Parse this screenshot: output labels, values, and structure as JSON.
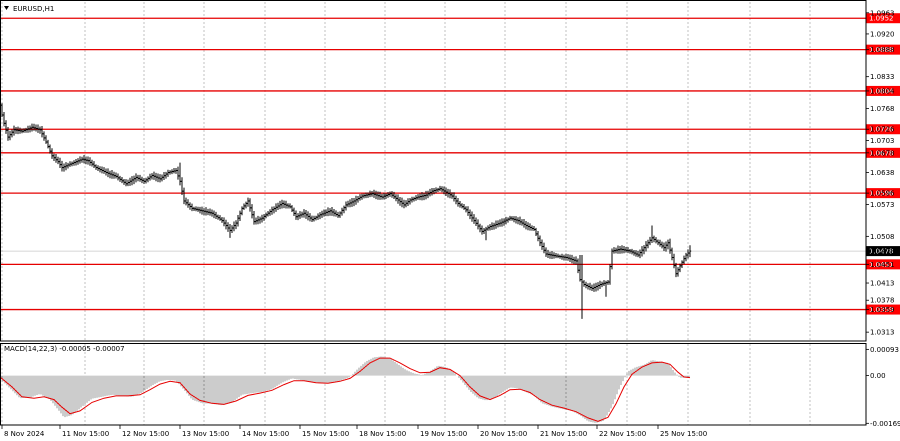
{
  "chart_data": [
    {
      "type": "candlestick",
      "title": "EURUSD,H1",
      "ylim": [
        1.0295,
        1.0985
      ],
      "y_ticks": [
        "1.0963",
        "1.0920",
        "1.0888",
        "1.0833",
        "1.0804",
        "1.0768",
        "1.0726",
        "1.0703",
        "1.0678",
        "1.0638",
        "1.0596",
        "1.0573",
        "1.0508",
        "1.0478",
        "1.0451",
        "1.0413",
        "1.0378",
        "1.0359",
        "1.0313"
      ],
      "current_price": {
        "value": 1.0478,
        "label": "1.0478"
      },
      "levels": [
        {
          "value": 1.0952,
          "label": "1.0952"
        },
        {
          "value": 1.0888,
          "label": "1.0888"
        },
        {
          "value": 1.0804,
          "label": "1.0804"
        },
        {
          "value": 1.0726,
          "label": "1.0726"
        },
        {
          "value": 1.0678,
          "label": "1.0678"
        },
        {
          "value": 1.0596,
          "label": "1.0596"
        },
        {
          "value": 1.0451,
          "label": "1.0451"
        },
        {
          "value": 1.0359,
          "label": "1.0359"
        }
      ],
      "x_labels": [
        "8 Nov 2024",
        "11 Nov 15:00",
        "12 Nov 15:00",
        "13 Nov 15:00",
        "14 Nov 15:00",
        "15 Nov 15:00",
        "18 Nov 15:00",
        "19 Nov 15:00",
        "20 Nov 15:00",
        "21 Nov 15:00",
        "22 Nov 15:00",
        "25 Nov 15:00"
      ],
      "price_path": [
        [
          0,
          1.0775
        ],
        [
          3,
          1.0745
        ],
        [
          8,
          1.071
        ],
        [
          14,
          1.0725
        ],
        [
          22,
          1.0722
        ],
        [
          32,
          1.073
        ],
        [
          40,
          1.0725
        ],
        [
          46,
          1.07
        ],
        [
          52,
          1.0672
        ],
        [
          58,
          1.066
        ],
        [
          62,
          1.0648
        ],
        [
          70,
          1.0655
        ],
        [
          82,
          1.0665
        ],
        [
          88,
          1.0662
        ],
        [
          96,
          1.0648
        ],
        [
          106,
          1.0638
        ],
        [
          116,
          1.063
        ],
        [
          126,
          1.0615
        ],
        [
          136,
          1.0628
        ],
        [
          144,
          1.062
        ],
        [
          152,
          1.0632
        ],
        [
          160,
          1.0625
        ],
        [
          168,
          1.0638
        ],
        [
          176,
          1.0642
        ],
        [
          180,
          1.062
        ],
        [
          184,
          1.058
        ],
        [
          192,
          1.0565
        ],
        [
          202,
          1.056
        ],
        [
          212,
          1.0555
        ],
        [
          222,
          1.054
        ],
        [
          230,
          1.052
        ],
        [
          236,
          1.0535
        ],
        [
          242,
          1.0565
        ],
        [
          248,
          1.058
        ],
        [
          254,
          1.0538
        ],
        [
          262,
          1.0545
        ],
        [
          272,
          1.0562
        ],
        [
          282,
          1.0575
        ],
        [
          290,
          1.0568
        ],
        [
          296,
          1.0548
        ],
        [
          304,
          1.0555
        ],
        [
          312,
          1.0542
        ],
        [
          320,
          1.0552
        ],
        [
          330,
          1.056
        ],
        [
          338,
          1.055
        ],
        [
          346,
          1.0572
        ],
        [
          354,
          1.058
        ],
        [
          362,
          1.059
        ],
        [
          372,
          1.0595
        ],
        [
          382,
          1.0588
        ],
        [
          390,
          1.0595
        ],
        [
          398,
          1.0582
        ],
        [
          404,
          1.0572
        ],
        [
          410,
          1.0582
        ],
        [
          418,
          1.0588
        ],
        [
          426,
          1.0592
        ],
        [
          432,
          1.06
        ],
        [
          440,
          1.0605
        ],
        [
          446,
          1.0598
        ],
        [
          452,
          1.059
        ],
        [
          458,
          1.0575
        ],
        [
          466,
          1.0562
        ],
        [
          474,
          1.054
        ],
        [
          482,
          1.0518
        ],
        [
          490,
          1.0528
        ],
        [
          500,
          1.0535
        ],
        [
          510,
          1.0545
        ],
        [
          518,
          1.054
        ],
        [
          526,
          1.053
        ],
        [
          534,
          1.0522
        ],
        [
          540,
          1.0495
        ],
        [
          546,
          1.0472
        ],
        [
          556,
          1.0468
        ],
        [
          566,
          1.0465
        ],
        [
          576,
          1.0458
        ],
        [
          580,
          1.042
        ],
        [
          584,
          1.041
        ],
        [
          592,
          1.0402
        ],
        [
          600,
          1.041
        ],
        [
          608,
          1.0415
        ],
        [
          612,
          1.0478
        ],
        [
          620,
          1.0482
        ],
        [
          630,
          1.0478
        ],
        [
          638,
          1.047
        ],
        [
          646,
          1.049
        ],
        [
          652,
          1.0505
        ],
        [
          658,
          1.0495
        ],
        [
          664,
          1.0485
        ],
        [
          668,
          1.0495
        ],
        [
          672,
          1.0465
        ],
        [
          676,
          1.0432
        ],
        [
          680,
          1.0448
        ],
        [
          686,
          1.047
        ],
        [
          690,
          1.0478
        ]
      ],
      "wicks": [
        [
          180,
          1.0658
        ],
        [
          230,
          1.0505
        ],
        [
          486,
          1.05
        ],
        [
          581,
          1.047
        ],
        [
          582,
          1.034
        ],
        [
          606,
          1.0385
        ],
        [
          652,
          1.053
        ],
        [
          676,
          1.0425
        ],
        [
          690,
          1.049
        ]
      ],
      "colors": {
        "level": "#e60000",
        "label_bg": "#ff0000",
        "label_text": "#ffffff",
        "grid": "#999999",
        "candle": "#000000",
        "current_bg": "#000000"
      }
    },
    {
      "type": "bar",
      "title": "MACD(14,22,3) -0.00005 -0.00007",
      "ylim": [
        -0.00175,
        0.00112
      ],
      "y_ticks": [
        "0.00093",
        "0.00",
        "-0.00169"
      ],
      "histogram": [
        [
          0,
          -0.0001
        ],
        [
          10,
          -0.00045
        ],
        [
          20,
          -0.0008
        ],
        [
          30,
          -0.00078
        ],
        [
          40,
          -0.00065
        ],
        [
          50,
          -0.00085
        ],
        [
          58,
          -0.0012
        ],
        [
          64,
          -0.00148
        ],
        [
          72,
          -0.0014
        ],
        [
          82,
          -0.0011
        ],
        [
          92,
          -0.00082
        ],
        [
          102,
          -0.00075
        ],
        [
          112,
          -0.00068
        ],
        [
          122,
          -0.00072
        ],
        [
          132,
          -0.00075
        ],
        [
          142,
          -0.0006
        ],
        [
          152,
          -0.00035
        ],
        [
          160,
          -0.0002
        ],
        [
          168,
          -0.00015
        ],
        [
          176,
          -0.00018
        ],
        [
          184,
          -0.0005
        ],
        [
          192,
          -0.00085
        ],
        [
          202,
          -0.00098
        ],
        [
          212,
          -0.001
        ],
        [
          222,
          -0.00105
        ],
        [
          232,
          -0.00095
        ],
        [
          242,
          -0.00068
        ],
        [
          252,
          -0.00062
        ],
        [
          262,
          -0.00058
        ],
        [
          272,
          -0.00048
        ],
        [
          282,
          -0.00025
        ],
        [
          292,
          -0.0001
        ],
        [
          300,
          -0.00015
        ],
        [
          310,
          -0.00022
        ],
        [
          320,
          -0.00028
        ],
        [
          330,
          -0.00025
        ],
        [
          340,
          -0.00018
        ],
        [
          350,
          -5e-05
        ],
        [
          358,
          0.00025
        ],
        [
          366,
          0.0005
        ],
        [
          374,
          0.00065
        ],
        [
          382,
          0.00068
        ],
        [
          390,
          0.00062
        ],
        [
          398,
          0.0004
        ],
        [
          406,
          0.0002
        ],
        [
          414,
          8e-05
        ],
        [
          422,
          2e-05
        ],
        [
          430,
          0.00015
        ],
        [
          438,
          0.00035
        ],
        [
          446,
          0.0003
        ],
        [
          454,
          0.00012
        ],
        [
          462,
          -0.0002
        ],
        [
          470,
          -0.00055
        ],
        [
          478,
          -0.0008
        ],
        [
          486,
          -0.00088
        ],
        [
          494,
          -0.0008
        ],
        [
          502,
          -0.0006
        ],
        [
          510,
          -0.00042
        ],
        [
          518,
          -0.00045
        ],
        [
          526,
          -0.00058
        ],
        [
          534,
          -0.0007
        ],
        [
          542,
          -0.00098
        ],
        [
          552,
          -0.0011
        ],
        [
          562,
          -0.00118
        ],
        [
          572,
          -0.00125
        ],
        [
          580,
          -0.0014
        ],
        [
          588,
          -0.00162
        ],
        [
          596,
          -0.00168
        ],
        [
          604,
          -0.0016
        ],
        [
          612,
          -0.0011
        ],
        [
          620,
          -0.0004
        ],
        [
          628,
          0.00015
        ],
        [
          636,
          0.0003
        ],
        [
          644,
          0.00038
        ],
        [
          652,
          0.00055
        ],
        [
          660,
          0.0005
        ],
        [
          668,
          0.00045
        ],
        [
          674,
          0.00015
        ],
        [
          680,
          -8e-05
        ],
        [
          690,
          -5e-05
        ]
      ],
      "signal": [
        [
          0,
          -5e-05
        ],
        [
          12,
          -0.0004
        ],
        [
          22,
          -0.00075
        ],
        [
          34,
          -0.0008
        ],
        [
          44,
          -0.00075
        ],
        [
          54,
          -0.00085
        ],
        [
          62,
          -0.00112
        ],
        [
          70,
          -0.00135
        ],
        [
          80,
          -0.00125
        ],
        [
          92,
          -0.00095
        ],
        [
          104,
          -0.0008
        ],
        [
          116,
          -0.00072
        ],
        [
          128,
          -0.00072
        ],
        [
          140,
          -0.00068
        ],
        [
          150,
          -0.0005
        ],
        [
          160,
          -0.0003
        ],
        [
          170,
          -0.0002
        ],
        [
          180,
          -0.00025
        ],
        [
          190,
          -0.00065
        ],
        [
          200,
          -0.00088
        ],
        [
          212,
          -0.00098
        ],
        [
          224,
          -0.00102
        ],
        [
          236,
          -0.0009
        ],
        [
          248,
          -0.0007
        ],
        [
          260,
          -0.00062
        ],
        [
          272,
          -0.00052
        ],
        [
          284,
          -0.00032
        ],
        [
          294,
          -0.00018
        ],
        [
          304,
          -0.00018
        ],
        [
          316,
          -0.00025
        ],
        [
          328,
          -0.00027
        ],
        [
          340,
          -0.0002
        ],
        [
          350,
          -0.0001
        ],
        [
          360,
          0.00015
        ],
        [
          370,
          0.00045
        ],
        [
          380,
          0.00062
        ],
        [
          390,
          0.00062
        ],
        [
          400,
          0.00045
        ],
        [
          410,
          0.00025
        ],
        [
          420,
          0.0001
        ],
        [
          430,
          0.00012
        ],
        [
          440,
          0.00028
        ],
        [
          450,
          0.00022
        ],
        [
          460,
          0.0
        ],
        [
          470,
          -0.0004
        ],
        [
          480,
          -0.00072
        ],
        [
          490,
          -0.00085
        ],
        [
          500,
          -0.0007
        ],
        [
          510,
          -0.0005
        ],
        [
          520,
          -0.00048
        ],
        [
          530,
          -0.0006
        ],
        [
          540,
          -0.00085
        ],
        [
          552,
          -0.00105
        ],
        [
          564,
          -0.00115
        ],
        [
          576,
          -0.00128
        ],
        [
          588,
          -0.0015
        ],
        [
          598,
          -0.00162
        ],
        [
          608,
          -0.00148
        ],
        [
          616,
          -0.001
        ],
        [
          624,
          -0.0004
        ],
        [
          632,
          5e-05
        ],
        [
          642,
          0.0003
        ],
        [
          652,
          0.00045
        ],
        [
          662,
          0.00048
        ],
        [
          670,
          0.0004
        ],
        [
          678,
          0.00012
        ],
        [
          684,
          -5e-05
        ],
        [
          690,
          -7e-05
        ]
      ],
      "colors": {
        "histogram": "#9a9a9a",
        "signal": "#e60000"
      }
    }
  ]
}
